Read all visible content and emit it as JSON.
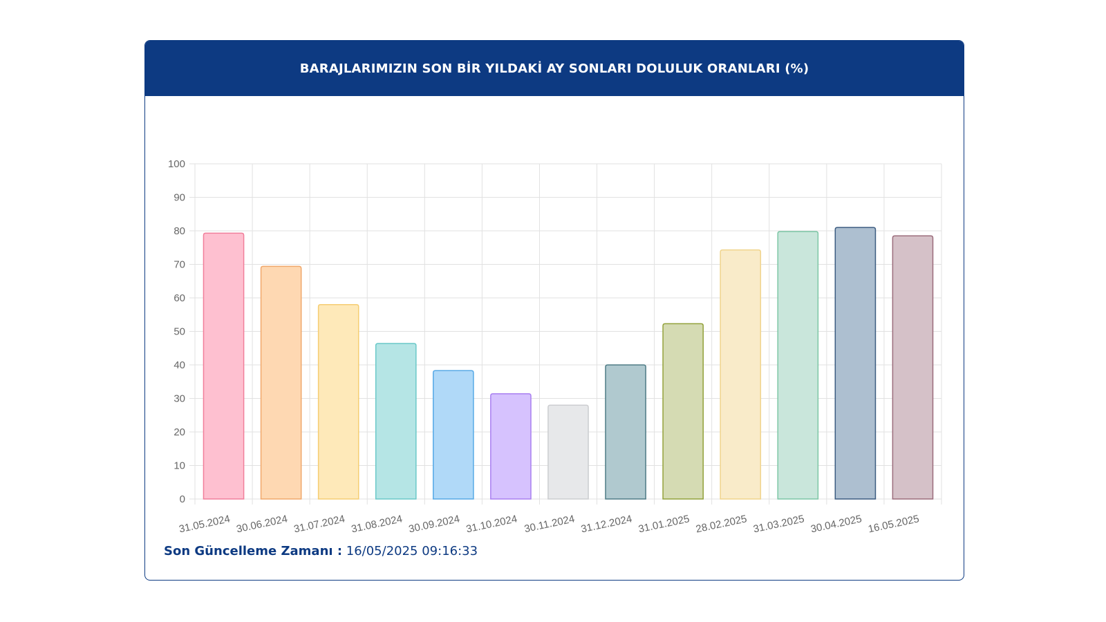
{
  "header": {
    "title": "BARAJLARIMIZIN SON BİR YILDAKİ AY SONLARI DOLULUK ORANLARI (%)"
  },
  "footer": {
    "label": "Son Güncelleme Zamanı :",
    "value": "16/05/2025 09:16:33"
  },
  "colors": {
    "header_bg": "#0d3a82",
    "footer_text": "#0d3a82"
  },
  "chart_data": {
    "type": "bar",
    "categories": [
      "31.05.2024",
      "30.06.2024",
      "31.07.2024",
      "31.08.2024",
      "30.09.2024",
      "31.10.2024",
      "30.11.2024",
      "31.12.2024",
      "31.01.2025",
      "28.02.2025",
      "31.03.2025",
      "30.04.2025",
      "16.05.2025"
    ],
    "values": [
      79.3,
      69.4,
      58.0,
      46.4,
      38.3,
      31.4,
      28.0,
      40.0,
      52.3,
      74.3,
      79.8,
      81.0,
      78.5
    ],
    "ylim": [
      0,
      100
    ],
    "yticks": [
      0,
      10,
      20,
      30,
      40,
      50,
      60,
      70,
      80,
      90,
      100
    ],
    "grid": true,
    "legend": "none",
    "fills": [
      "#fec0d0",
      "#fed8b2",
      "#fee9b9",
      "#b5e5e5",
      "#b0d9f8",
      "#d6c2fe",
      "#e7e8ea",
      "#b0c9cf",
      "#d5dbb3",
      "#f9ebc9",
      "#c9e6db",
      "#adbfd0",
      "#d5c1c8"
    ],
    "strokes": [
      "#f17e9a",
      "#f0a76a",
      "#f5cd72",
      "#69c8c8",
      "#56a9e6",
      "#a97ff0",
      "#cccdd0",
      "#4f7c86",
      "#92a13a",
      "#f0d48c",
      "#7cc6a5",
      "#3b5b80",
      "#9b6c7b"
    ]
  }
}
